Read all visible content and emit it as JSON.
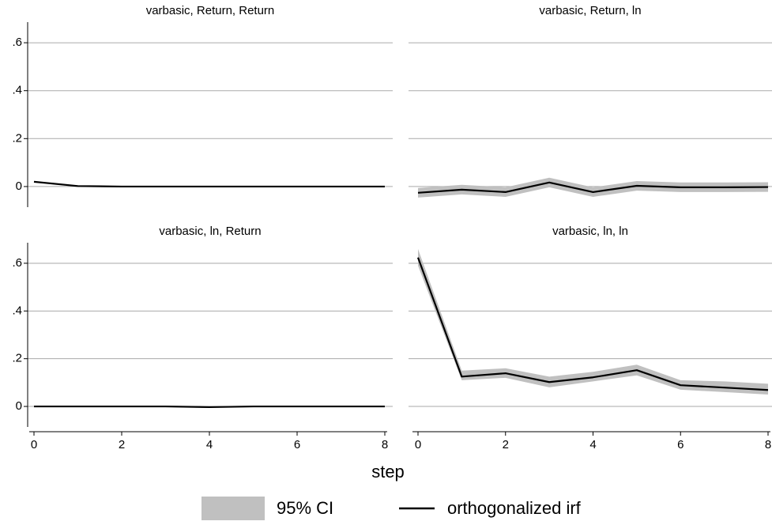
{
  "chart_data": [
    {
      "type": "line",
      "title": "varbasic, Return, Return",
      "x": [
        0,
        1,
        2,
        3,
        4,
        5,
        6,
        7,
        8
      ],
      "series": [
        {
          "name": "95% CI",
          "color": "#c0c0c0",
          "lower": [
            0.019,
            0.001,
            -0.001,
            0,
            0,
            0,
            0,
            0,
            0
          ],
          "upper": [
            0.021,
            0.003,
            0.001,
            0,
            0,
            0,
            0,
            0,
            0
          ]
        },
        {
          "name": "orthogonalized irf",
          "color": "#000000",
          "values": [
            0.02,
            0.002,
            0,
            0,
            0,
            0,
            0,
            0,
            0
          ]
        }
      ],
      "xlim": [
        0,
        8
      ],
      "xticks": [
        0,
        2,
        4,
        6,
        8
      ],
      "ylim": [
        -0.086,
        0.686
      ],
      "yticks": [
        0,
        {
          "value": 0.2,
          "label": ".2"
        },
        {
          "value": 0.4,
          "label": ".4"
        },
        {
          "value": 0.6,
          "label": ".6"
        }
      ],
      "grid": true
    },
    {
      "type": "line",
      "title": "varbasic, Return, ln",
      "x": [
        0,
        1,
        2,
        3,
        4,
        5,
        6,
        7,
        8
      ],
      "series": [
        {
          "name": "95% CI",
          "color": "#c0c0c0",
          "lower": [
            -0.046,
            -0.033,
            -0.043,
            -0.003,
            -0.043,
            -0.017,
            -0.023,
            -0.023,
            -0.022
          ],
          "upper": [
            -0.006,
            0.007,
            -0.003,
            0.037,
            -0.003,
            0.023,
            0.017,
            0.017,
            0.018
          ]
        },
        {
          "name": "orthogonalized irf",
          "color": "#000000",
          "values": [
            -0.026,
            -0.013,
            -0.023,
            0.017,
            -0.023,
            0.003,
            -0.003,
            -0.003,
            -0.002
          ]
        }
      ],
      "xlim": [
        0,
        8
      ],
      "xticks": [
        0,
        2,
        4,
        6,
        8
      ],
      "ylim": [
        -0.086,
        0.686
      ],
      "yticks": [
        0,
        {
          "value": 0.2,
          "label": ".2"
        },
        {
          "value": 0.4,
          "label": ".4"
        },
        {
          "value": 0.6,
          "label": ".6"
        }
      ],
      "grid": true
    },
    {
      "type": "line",
      "title": "varbasic, ln, Return",
      "x": [
        0,
        1,
        2,
        3,
        4,
        5,
        6,
        7,
        8
      ],
      "series": [
        {
          "name": "95% CI",
          "color": "#c0c0c0",
          "lower": [
            0,
            0,
            0,
            0,
            -0.004,
            -0.001,
            0,
            0,
            0
          ],
          "upper": [
            0,
            0,
            0,
            0,
            -0.002,
            0.001,
            0,
            0,
            0
          ]
        },
        {
          "name": "orthogonalized irf",
          "color": "#000000",
          "values": [
            0,
            0,
            0,
            0,
            -0.003,
            0,
            0,
            0,
            0
          ]
        }
      ],
      "xlim": [
        0,
        8
      ],
      "xticks": [
        0,
        2,
        4,
        6,
        8
      ],
      "ylim": [
        -0.086,
        0.686
      ],
      "yticks": [
        0,
        {
          "value": 0.2,
          "label": ".2"
        },
        {
          "value": 0.4,
          "label": ".4"
        },
        {
          "value": 0.6,
          "label": ".6"
        }
      ],
      "grid": true
    },
    {
      "type": "line",
      "title": "varbasic, ln, ln",
      "x": [
        0,
        1,
        2,
        3,
        4,
        5,
        6,
        7,
        8
      ],
      "series": [
        {
          "name": "95% CI",
          "color": "#c0c0c0",
          "lower": [
            0.59,
            0.11,
            0.12,
            0.08,
            0.105,
            0.13,
            0.07,
            0.06,
            0.05
          ],
          "upper": [
            0.66,
            0.15,
            0.16,
            0.125,
            0.145,
            0.175,
            0.11,
            0.105,
            0.095
          ]
        },
        {
          "name": "orthogonalized irf",
          "color": "#000000",
          "values": [
            0.624,
            0.125,
            0.139,
            0.102,
            0.122,
            0.152,
            0.089,
            0.079,
            0.069
          ]
        }
      ],
      "xlim": [
        0,
        8
      ],
      "xticks": [
        0,
        2,
        4,
        6,
        8
      ],
      "ylim": [
        -0.086,
        0.686
      ],
      "yticks": [
        0,
        {
          "value": 0.2,
          "label": ".2"
        },
        {
          "value": 0.4,
          "label": ".4"
        },
        {
          "value": 0.6,
          "label": ".6"
        }
      ],
      "grid": true
    }
  ],
  "xlabel": "step"
}
